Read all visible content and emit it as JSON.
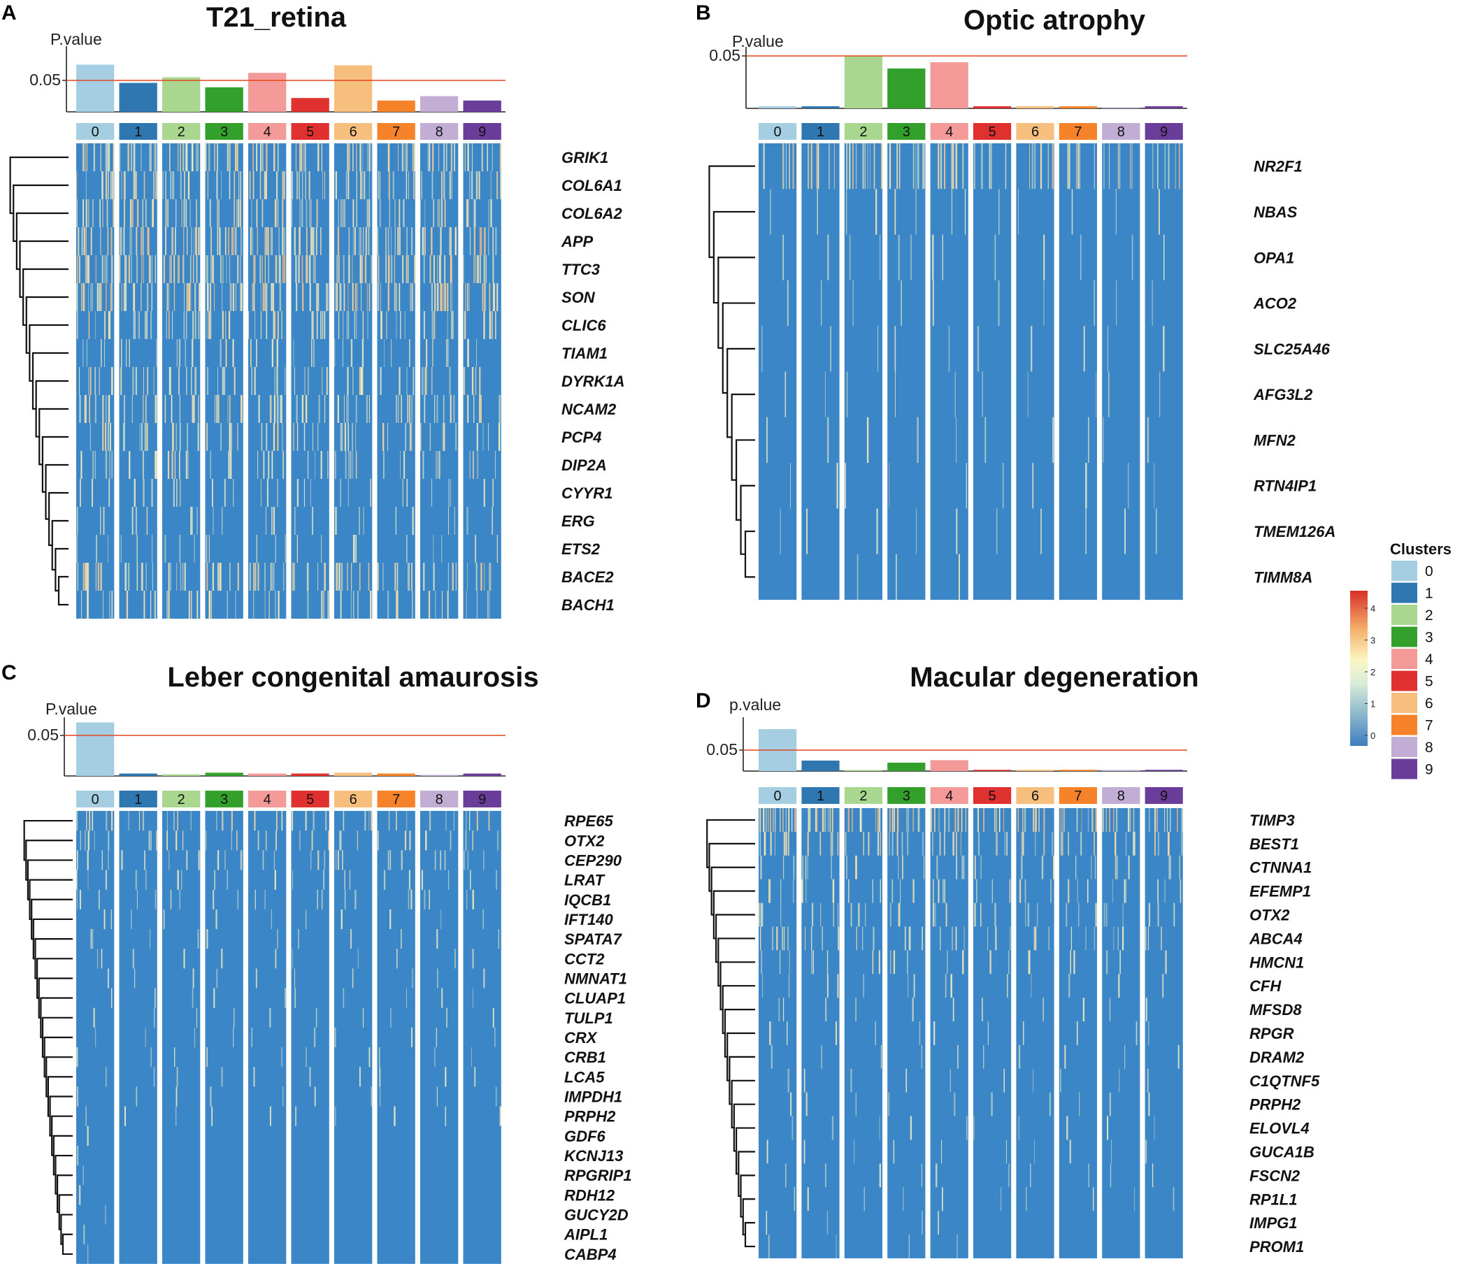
{
  "chart_data": [
    {
      "type": "heatmap",
      "panel": "A",
      "title": "T21_retina",
      "pvalue_label": "P.value",
      "threshold_label": "0.05",
      "threshold": 0.05,
      "clusters": [
        "0",
        "1",
        "2",
        "3",
        "4",
        "5",
        "6",
        "7",
        "8",
        "9"
      ],
      "pvalues": [
        0.075,
        0.046,
        0.055,
        0.039,
        0.062,
        0.022,
        0.074,
        0.018,
        0.025,
        0.018
      ],
      "genes": [
        "GRIK1",
        "COL6A1",
        "COL6A2",
        "APP",
        "TTC3",
        "SON",
        "CLIC6",
        "TIAM1",
        "DYRK1A",
        "NCAM2",
        "PCP4",
        "DIP2A",
        "CYYR1",
        "ERG",
        "ETS2",
        "BACE2",
        "BACH1"
      ],
      "row_expression": [
        0.5,
        0.45,
        0.4,
        0.55,
        0.6,
        0.62,
        0.35,
        0.2,
        0.3,
        0.35,
        0.28,
        0.25,
        0.15,
        0.12,
        0.12,
        0.4,
        0.25
      ]
    },
    {
      "type": "heatmap",
      "panel": "B",
      "title": "Optic atrophy",
      "pvalue_label": "P.value",
      "threshold_label": "0.05",
      "threshold": 0.05,
      "clusters": [
        "0",
        "1",
        "2",
        "3",
        "4",
        "5",
        "6",
        "7",
        "8",
        "9"
      ],
      "pvalues": [
        0.002,
        0.002,
        0.05,
        0.038,
        0.044,
        0.002,
        0.002,
        0.002,
        0.001,
        0.002
      ],
      "genes": [
        "NR2F1",
        "NBAS",
        "OPA1",
        "ACO2",
        "SLC25A46",
        "AFG3L2",
        "MFN2",
        "RTN4IP1",
        "TMEM126A",
        "TIMM8A"
      ],
      "row_expression": [
        0.45,
        0.1,
        0.08,
        0.06,
        0.06,
        0.05,
        0.06,
        0.04,
        0.04,
        0.03
      ]
    },
    {
      "type": "heatmap",
      "panel": "C",
      "title": "Leber congenital amaurosis",
      "pvalue_label": "P.value",
      "threshold_label": "0.05",
      "threshold": 0.05,
      "clusters": [
        "0",
        "1",
        "2",
        "3",
        "4",
        "5",
        "6",
        "7",
        "8",
        "9"
      ],
      "pvalues": [
        0.066,
        0.003,
        0.002,
        0.004,
        0.003,
        0.003,
        0.004,
        0.003,
        0.001,
        0.003
      ],
      "genes": [
        "RPE65",
        "OTX2",
        "CEP290",
        "LRAT",
        "IQCB1",
        "IFT140",
        "SPATA7",
        "CCT2",
        "NMNAT1",
        "CLUAP1",
        "TULP1",
        "CRX",
        "CRB1",
        "LCA5",
        "IMPDH1",
        "PRPH2",
        "GDF6",
        "KCNJ13",
        "RPGRIP1",
        "RDH12",
        "GUCY2D",
        "AIPL1",
        "CABP4"
      ],
      "row_expression": [
        0.3,
        0.25,
        0.2,
        0.15,
        0.12,
        0.1,
        0.08,
        0.07,
        0.06,
        0.06,
        0.05,
        0.05,
        0.05,
        0.04,
        0.04,
        0.04,
        0.03,
        0.03,
        0.03,
        0.03,
        0.03,
        0.03,
        0.03
      ]
    },
    {
      "type": "heatmap",
      "panel": "D",
      "title": "Macular degeneration",
      "pvalue_label": "p.value",
      "threshold_label": "0.05",
      "threshold": 0.05,
      "clusters": [
        "0",
        "1",
        "2",
        "3",
        "4",
        "5",
        "6",
        "7",
        "8",
        "9"
      ],
      "pvalues": [
        0.1,
        0.025,
        0.001,
        0.02,
        0.026,
        0.003,
        0.003,
        0.003,
        0.001,
        0.003
      ],
      "genes": [
        "TIMP3",
        "BEST1",
        "CTNNA1",
        "EFEMP1",
        "OTX2",
        "ABCA4",
        "HMCN1",
        "CFH",
        "MFSD8",
        "RPGR",
        "DRAM2",
        "C1QTNF5",
        "PRPH2",
        "ELOVL4",
        "GUCA1B",
        "FSCN2",
        "RP1L1",
        "IMPG1",
        "PROM1"
      ],
      "row_expression": [
        0.65,
        0.4,
        0.2,
        0.2,
        0.2,
        0.25,
        0.15,
        0.1,
        0.08,
        0.07,
        0.06,
        0.05,
        0.05,
        0.05,
        0.04,
        0.04,
        0.04,
        0.03,
        0.03
      ]
    }
  ],
  "legend": {
    "title": "Clusters",
    "items": [
      {
        "label": "0",
        "color": "#a6cee3"
      },
      {
        "label": "1",
        "color": "#2f77b0"
      },
      {
        "label": "2",
        "color": "#a9d78f"
      },
      {
        "label": "3",
        "color": "#33a02c"
      },
      {
        "label": "4",
        "color": "#f49a99"
      },
      {
        "label": "5",
        "color": "#e03030"
      },
      {
        "label": "6",
        "color": "#f7bf7d"
      },
      {
        "label": "7",
        "color": "#f6822a"
      },
      {
        "label": "8",
        "color": "#c2aed4"
      },
      {
        "label": "9",
        "color": "#6b3d9a"
      }
    ]
  },
  "colorscale": {
    "ticks": [
      "0",
      "1",
      "2",
      "3",
      "4"
    ],
    "colors": [
      "#3d7fc0",
      "#fbf6c4",
      "#d73027"
    ]
  },
  "colors": {
    "heatmap_base": "#3a86c6",
    "threshold_line": "#e0461e"
  }
}
